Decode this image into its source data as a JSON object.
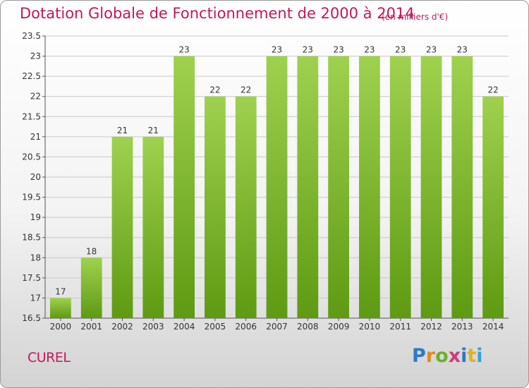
{
  "header": {
    "title": "Dotation Globale de Fonctionnement de 2000 à 2014",
    "subtitle": "(en milliers d'€)"
  },
  "footer": {
    "commune": "CUREL",
    "logo_text": "Proxiti"
  },
  "colors": {
    "title": "#c2185b",
    "bar_top": "#9fd14f",
    "bar_bottom": "#5e9a12",
    "grid": "#c8c8c8"
  },
  "chart_data": {
    "type": "bar",
    "title": "Dotation Globale de Fonctionnement de 2000 à 2014",
    "subtitle": "(en milliers d'€)",
    "xlabel": "",
    "ylabel": "",
    "categories": [
      "2000",
      "2001",
      "2002",
      "2003",
      "2004",
      "2005",
      "2006",
      "2007",
      "2008",
      "2009",
      "2010",
      "2011",
      "2012",
      "2013",
      "2014"
    ],
    "values": [
      17,
      18,
      21,
      21,
      23,
      22,
      22,
      23,
      23,
      23,
      23,
      23,
      23,
      23,
      22
    ],
    "value_labels": [
      "17",
      "18",
      "21",
      "21",
      "23",
      "22",
      "22",
      "23",
      "23",
      "23",
      "23",
      "23",
      "23",
      "23",
      "22"
    ],
    "ylim": [
      16.5,
      23.5
    ],
    "yticks": [
      16.5,
      17,
      17.5,
      18,
      18.5,
      19,
      19.5,
      20,
      20.5,
      21,
      21.5,
      22,
      22.5,
      23,
      23.5
    ],
    "ytick_labels": [
      "16.5",
      "17",
      "17.5",
      "18",
      "18.5",
      "19",
      "19.5",
      "20",
      "20.5",
      "21",
      "21.5",
      "22",
      "22.5",
      "23",
      "23.5"
    ],
    "grid": true,
    "legend": "none"
  }
}
